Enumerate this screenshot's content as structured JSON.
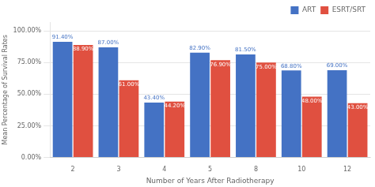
{
  "chart_data": {
    "type": "bar",
    "xlabel": "Number of Years After Radiotherapy",
    "ylabel": "Mean Percentage of Survival Rates",
    "categories": [
      "2",
      "3",
      "4",
      "5",
      "8",
      "10",
      "12"
    ],
    "series": [
      {
        "name": "ART",
        "color": "#4472C4",
        "values": [
          91.4,
          87.0,
          43.4,
          82.9,
          81.5,
          68.8,
          69.0
        ],
        "value_labels": [
          "91.40%",
          "87.00%",
          "43.40%",
          "82.90%",
          "81.50%",
          "68.80%",
          "69.00%"
        ]
      },
      {
        "name": "ESRT/SRT",
        "color": "#E05040",
        "values": [
          88.9,
          61.0,
          44.2,
          76.9,
          75.0,
          48.0,
          43.0
        ],
        "value_labels": [
          "88.90%",
          "61.00%",
          "44.20%",
          "76.90%",
          "75.00%",
          "48.00%",
          "43.00%"
        ]
      }
    ],
    "ylim": [
      0,
      107
    ],
    "yticks": [
      {
        "value": 0,
        "label": "0.00%"
      },
      {
        "value": 25,
        "label": "25.00%"
      },
      {
        "value": 50,
        "label": "50.00%"
      },
      {
        "value": 75,
        "label": "75.00%"
      },
      {
        "value": 100,
        "label": "100.00%"
      }
    ],
    "grid": true,
    "legend": "upper right",
    "data_labels": true
  }
}
